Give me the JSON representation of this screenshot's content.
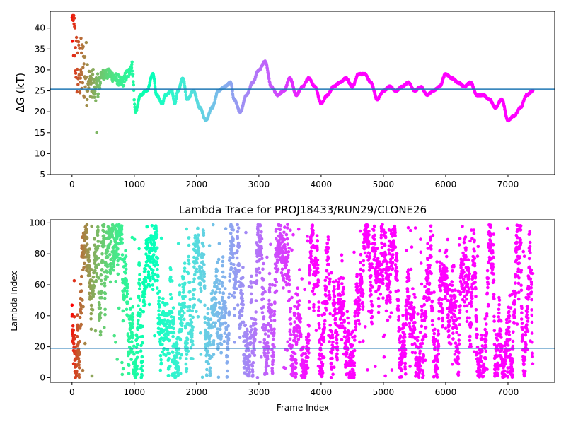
{
  "chart_data": [
    {
      "type": "scatter",
      "title": "",
      "xlabel": "",
      "ylabel": "ΔG (kT)",
      "xlim": [
        -350,
        7750
      ],
      "ylim": [
        5,
        44
      ],
      "xticks": [
        0,
        1000,
        2000,
        3000,
        4000,
        5000,
        6000,
        7000
      ],
      "yticks": [
        5,
        10,
        15,
        20,
        25,
        30,
        35,
        40
      ],
      "grid": false,
      "reference_line": {
        "y": 25.4,
        "color": "#1f77b4"
      },
      "colormap": "rainbow",
      "trace_knots": [
        [
          0,
          40
        ],
        [
          100,
          30
        ],
        [
          200,
          30
        ],
        [
          300,
          27
        ],
        [
          400,
          26
        ],
        [
          500,
          29
        ],
        [
          600,
          29
        ],
        [
          700,
          28
        ],
        [
          800,
          27
        ],
        [
          900,
          29
        ],
        [
          960,
          31
        ],
        [
          1020,
          20
        ],
        [
          1100,
          24
        ],
        [
          1200,
          25
        ],
        [
          1300,
          29
        ],
        [
          1360,
          24
        ],
        [
          1450,
          22
        ],
        [
          1500,
          24
        ],
        [
          1600,
          25
        ],
        [
          1650,
          22
        ],
        [
          1700,
          25
        ],
        [
          1780,
          28
        ],
        [
          1850,
          23
        ],
        [
          1950,
          25
        ],
        [
          2050,
          21
        ],
        [
          2150,
          18
        ],
        [
          2250,
          21
        ],
        [
          2350,
          25
        ],
        [
          2450,
          26
        ],
        [
          2550,
          27
        ],
        [
          2600,
          23
        ],
        [
          2700,
          20
        ],
        [
          2800,
          24
        ],
        [
          2900,
          27
        ],
        [
          3000,
          30
        ],
        [
          3100,
          32
        ],
        [
          3200,
          26
        ],
        [
          3300,
          24
        ],
        [
          3400,
          25
        ],
        [
          3500,
          28
        ],
        [
          3600,
          24
        ],
        [
          3700,
          26
        ],
        [
          3800,
          28
        ],
        [
          3900,
          26
        ],
        [
          4000,
          22
        ],
        [
          4100,
          24
        ],
        [
          4200,
          26
        ],
        [
          4300,
          27
        ],
        [
          4400,
          28
        ],
        [
          4500,
          26
        ],
        [
          4600,
          29
        ],
        [
          4700,
          29
        ],
        [
          4800,
          27
        ],
        [
          4900,
          23
        ],
        [
          5000,
          25
        ],
        [
          5100,
          26
        ],
        [
          5200,
          25
        ],
        [
          5300,
          26
        ],
        [
          5400,
          27
        ],
        [
          5500,
          25
        ],
        [
          5600,
          26
        ],
        [
          5700,
          24
        ],
        [
          5800,
          25
        ],
        [
          5900,
          26
        ],
        [
          6000,
          29
        ],
        [
          6100,
          28
        ],
        [
          6200,
          27
        ],
        [
          6300,
          26
        ],
        [
          6400,
          27
        ],
        [
          6500,
          24
        ],
        [
          6600,
          24
        ],
        [
          6700,
          23
        ],
        [
          6800,
          21
        ],
        [
          6900,
          23
        ],
        [
          7000,
          18
        ],
        [
          7100,
          19
        ],
        [
          7200,
          21
        ],
        [
          7300,
          24
        ],
        [
          7400,
          25
        ]
      ]
    },
    {
      "type": "scatter",
      "title": "Lambda Trace for PROJ18433/RUN29/CLONE26",
      "xlabel": "Frame Index",
      "ylabel": "Lambda Index",
      "xlim": [
        -350,
        7750
      ],
      "ylim": [
        -3,
        102
      ],
      "xticks": [
        0,
        1000,
        2000,
        3000,
        4000,
        5000,
        6000,
        7000
      ],
      "yticks": [
        0,
        20,
        40,
        60,
        80,
        100
      ],
      "grid": false,
      "reference_line": {
        "y": 19,
        "color": "#1f77b4"
      },
      "colormap": "rainbow",
      "x_range": [
        0,
        7400
      ],
      "y_range": [
        0,
        99
      ],
      "point_count": 4200
    }
  ]
}
